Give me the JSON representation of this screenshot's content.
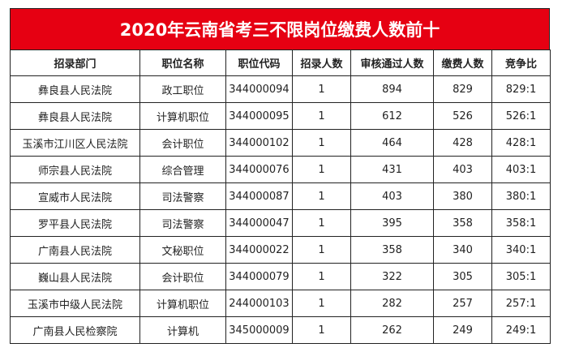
{
  "title": "2020年云南省考三不限岗位缴费人数前十",
  "colors": {
    "title_bg": "#e60012"
  },
  "headers": [
    "招录部门",
    "职位名称",
    "职位代码",
    "招录人数",
    "审核通过人数",
    "缴费人数",
    "竞争比"
  ],
  "rows": [
    [
      "彝良县人民法院",
      "政工职位",
      "344000094",
      "1",
      "894",
      "829",
      "829:1"
    ],
    [
      "彝良县人民法院",
      "计算机职位",
      "344000095",
      "1",
      "612",
      "526",
      "526:1"
    ],
    [
      "玉溪市江川区人民法院",
      "会计职位",
      "344000102",
      "1",
      "464",
      "428",
      "428:1"
    ],
    [
      "师宗县人民法院",
      "综合管理",
      "344000076",
      "1",
      "431",
      "403",
      "403:1"
    ],
    [
      "宣威市人民法院",
      "司法警察",
      "344000087",
      "1",
      "403",
      "380",
      "380:1"
    ],
    [
      "罗平县人民法院",
      "司法警察",
      "344000047",
      "1",
      "395",
      "358",
      "358:1"
    ],
    [
      "广南县人民法院",
      "文秘职位",
      "344000022",
      "1",
      "358",
      "340",
      "340:1"
    ],
    [
      "巍山县人民法院",
      "会计职位",
      "344000079",
      "1",
      "322",
      "305",
      "305:1"
    ],
    [
      "玉溪市中级人民法院",
      "计算机职位",
      "244000103",
      "1",
      "282",
      "257",
      "257:1"
    ],
    [
      "广南县人民检察院",
      "计算机",
      "345000009",
      "1",
      "262",
      "249",
      "249:1"
    ]
  ]
}
